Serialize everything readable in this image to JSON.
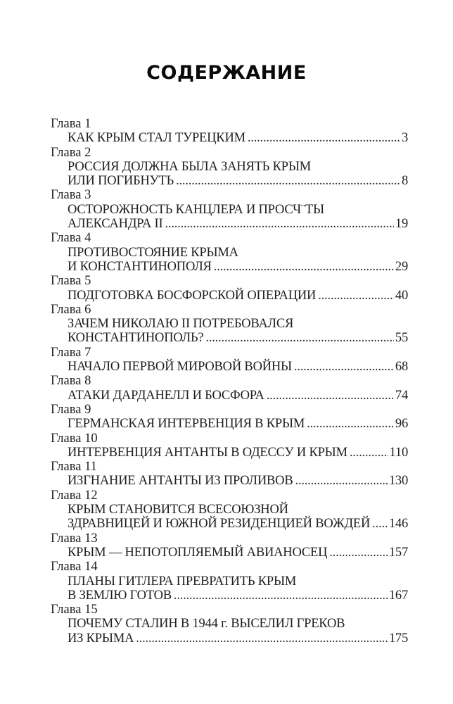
{
  "page": {
    "title": "СОДЕРЖАНИЕ"
  },
  "toc": {
    "entries": [
      {
        "chapter": "Глава 1",
        "lines": [
          "КАК КРЫМ СТАЛ ТУРЕЦКИМ"
        ],
        "page": "3"
      },
      {
        "chapter": "Глава 2",
        "lines": [
          "РОССИЯ ДОЛЖНА БЫЛА ЗАНЯТЬ КРЫМ",
          "ИЛИ ПОГИБНУТЬ"
        ],
        "page": "8"
      },
      {
        "chapter": "Глава 3",
        "lines": [
          "ОСТОРОЖНОСТЬ КАНЦЛЕРА И ПРОСЧ¨ТЫ",
          "АЛЕКСАНДРА II"
        ],
        "page": "19"
      },
      {
        "chapter": "Глава 4",
        "lines": [
          "ПРОТИВОСТОЯНИЕ КРЫМА",
          "И КОНСТАНТИНОПОЛЯ"
        ],
        "page": "29"
      },
      {
        "chapter": "Глава 5",
        "lines": [
          "ПОДГОТОВКА БОСФОРСКОЙ ОПЕРАЦИИ"
        ],
        "page": "40"
      },
      {
        "chapter": "Глава 6",
        "lines": [
          "ЗАЧЕМ НИКОЛАЮ II ПОТРЕБОВАЛСЯ",
          "КОНСТАНТИНОПОЛЬ?"
        ],
        "page": "55"
      },
      {
        "chapter": "Глава 7",
        "lines": [
          "НАЧАЛО ПЕРВОЙ МИРОВОЙ ВОЙНЫ"
        ],
        "page": "68"
      },
      {
        "chapter": "Глава 8",
        "lines": [
          "АТАКИ ДАРДАНЕЛЛ И БОСФОРА"
        ],
        "page": "74"
      },
      {
        "chapter": "Глава 9",
        "lines": [
          "ГЕРМАНСКАЯ ИНТЕРВЕНЦИЯ В КРЫМ"
        ],
        "page": "96"
      },
      {
        "chapter": "Глава 10",
        "lines": [
          "ИНТЕРВЕНЦИЯ АНТАНТЫ В ОДЕССУ И КРЫМ"
        ],
        "page": "110"
      },
      {
        "chapter": "Глава 11",
        "lines": [
          "ИЗГНАНИЕ АНТАНТЫ ИЗ ПРОЛИВОВ"
        ],
        "page": "130"
      },
      {
        "chapter": "Глава 12",
        "lines": [
          "КРЫМ СТАНОВИТСЯ ВСЕСОЮЗНОЙ",
          "ЗДРАВНИЦЕЙ И ЮЖНОЙ РЕЗИДЕНЦИЕЙ ВОЖДЕЙ"
        ],
        "page": "146"
      },
      {
        "chapter": "Глава 13",
        "lines": [
          "КРЫМ — НЕПОТОПЛЯЕМЫЙ АВИАНОСЕЦ"
        ],
        "page": "157"
      },
      {
        "chapter": "Глава 14",
        "lines": [
          "ПЛАНЫ ГИТЛЕРА ПРЕВРАТИТЬ КРЫМ",
          "В ЗЕМЛЮ ГОТОВ"
        ],
        "page": "167"
      },
      {
        "chapter": "Глава 15",
        "lines": [
          "ПОЧЕМУ СТАЛИН В 1944 г. ВЫСЕЛИЛ ГРЕКОВ",
          "ИЗ КРЫМА"
        ],
        "page": "175"
      }
    ],
    "text_color": "#1f1f1f"
  }
}
